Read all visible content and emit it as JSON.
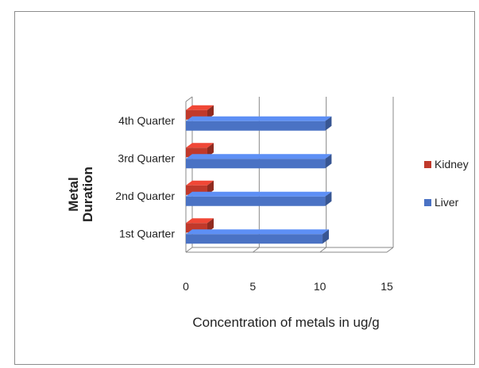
{
  "chart_data": {
    "type": "bar",
    "orientation": "horizontal",
    "title": "",
    "categories": [
      "1st Quarter",
      "2nd Quarter",
      "3rd Quarter",
      "4th Quarter"
    ],
    "series": [
      {
        "name": "Liver",
        "values": [
          10.2,
          10.4,
          10.4,
          10.4
        ],
        "color": "#4a72c4"
      },
      {
        "name": "Kidney",
        "values": [
          1.6,
          1.6,
          1.6,
          1.6
        ],
        "color": "#c0392b"
      }
    ],
    "xlabel": "Concentration of metals in ug/g",
    "ylabel_lines": [
      "Metal",
      "Duration"
    ],
    "xlim": [
      0,
      15
    ],
    "xticks": [
      "0",
      "5",
      "10",
      "15"
    ],
    "grid": true,
    "legend_position": "right",
    "legend_order": [
      "Kidney",
      "Liver"
    ]
  }
}
